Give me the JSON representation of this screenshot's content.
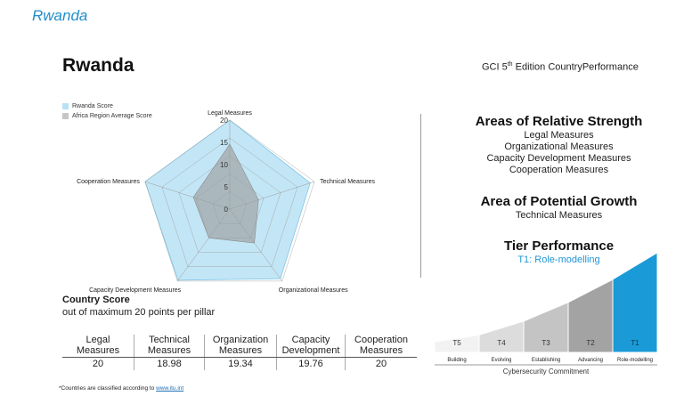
{
  "header": {
    "top_label": "Rwanda",
    "title": "Rwanda",
    "edition_prefix": "GCI 5",
    "edition_sup": "th",
    "edition_suffix": " Edition CountryPerformance"
  },
  "legend": [
    {
      "label": "Rwanda Score",
      "color": "#b8e2f4"
    },
    {
      "label": "Africa Region Average Score",
      "color": "#c6c6c6"
    }
  ],
  "chart_data": {
    "type": "radar",
    "axes": [
      "Legal Measures",
      "Technical Measures",
      "Organizational Measures",
      "Capacity Development Measures",
      "Cooperation Measures"
    ],
    "ticks": [
      "20",
      "15",
      "10",
      "5",
      "0"
    ],
    "range": [
      0,
      20
    ],
    "series": [
      {
        "name": "Rwanda Score",
        "values": [
          20,
          18.98,
          19.34,
          19.76,
          20
        ],
        "color": "#b8e2f4"
      },
      {
        "name": "Africa Region Average Score",
        "values": [
          14.6,
          6.8,
          9.4,
          8.0,
          8.6
        ],
        "color": "#9a9a9a"
      }
    ]
  },
  "strengths": {
    "title": "Areas of Relative Strength",
    "items": [
      "Legal Measures",
      "Organizational Measures",
      "Capacity Development Measures",
      "Cooperation Measures"
    ]
  },
  "growth": {
    "title": "Area of Potential Growth",
    "items": [
      "Technical Measures"
    ]
  },
  "tier": {
    "title": "Tier Performance",
    "value": "T1: Role-modelling",
    "levels": [
      {
        "code": "T5",
        "name": "Building",
        "color": "#f2f2f2"
      },
      {
        "code": "T4",
        "name": "Evolving",
        "color": "#dcdcdc"
      },
      {
        "code": "T3",
        "name": "Establishing",
        "color": "#c4c4c4"
      },
      {
        "code": "T2",
        "name": "Advancing",
        "color": "#a3a3a3"
      },
      {
        "code": "T1",
        "name": "Role-modelling",
        "color": "#1a9ad6"
      }
    ],
    "axis_label": "Cybersecurity Commitment"
  },
  "country_score": {
    "title": "Country Score",
    "subtitle": "out of maximum 20 points per pillar",
    "headers": [
      [
        "Legal",
        "Measures"
      ],
      [
        "Technical",
        "Measures"
      ],
      [
        "Organization",
        "Measures"
      ],
      [
        "Capacity",
        "Development"
      ],
      [
        "Cooperation",
        "Measures"
      ]
    ],
    "values": [
      "20",
      "18.98",
      "19.34",
      "19.76",
      "20"
    ]
  },
  "footnote": {
    "text": "*Countries are classified according to ",
    "link": "www.itu.int"
  }
}
